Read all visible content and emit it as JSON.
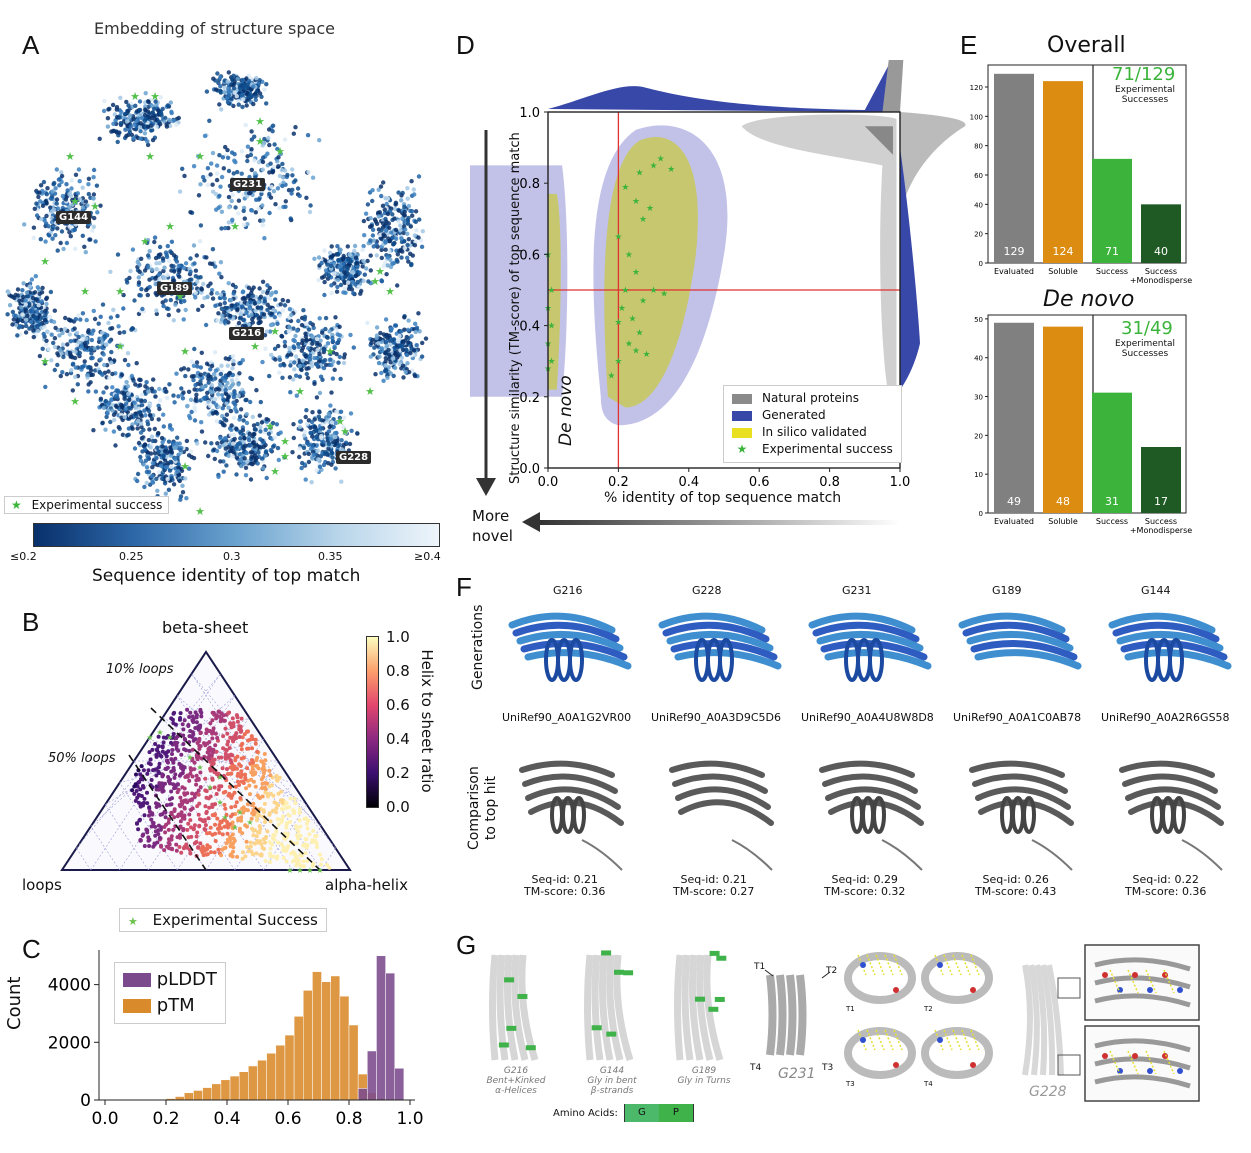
{
  "panel_labels": [
    "A",
    "B",
    "C",
    "D",
    "E",
    "F",
    "G"
  ],
  "panelA": {
    "title": "Embedding of structure space",
    "tags": [
      "G144",
      "G231",
      "G189",
      "G216",
      "G228"
    ],
    "legend": "Experimental success",
    "colorbar_ticks": [
      "≤0.2",
      "0.25",
      "0.3",
      "0.35",
      "≥0.4"
    ],
    "colorbar_label": "Sequence identity of top match"
  },
  "panelB": {
    "corner_top": "beta-sheet",
    "corner_left": "loops",
    "corner_right": "alpha-helix",
    "annot_10": "10% loops",
    "annot_50": "50% loops",
    "colorbar_ticks": [
      "1.0",
      "0.8",
      "0.6",
      "0.4",
      "0.2",
      "0.0"
    ],
    "colorbar_label": "Helix to sheet ratio",
    "legend": "Experimental Success"
  },
  "panelD": {
    "ylabel": "Structure similarity (TM-score) of top sequence match",
    "xlabel": "% identity of top sequence match",
    "xticks": [
      "0.0",
      "0.2",
      "0.4",
      "0.6",
      "0.8",
      "1.0"
    ],
    "yticks": [
      "0.0",
      "0.2",
      "0.4",
      "0.6",
      "0.8",
      "1.0"
    ],
    "annot": "De novo",
    "legend": [
      "Natural proteins",
      "Generated",
      "In silico validated",
      "Experimental success"
    ],
    "arrow_label_1": "More",
    "arrow_label_2": "novel"
  },
  "panelE": {
    "overall_title": "Overall",
    "denovo_title": "De novo",
    "overall_big": "71/129",
    "denovo_big": "31/49",
    "sub1": "Experimental",
    "sub2": "Successes",
    "overall_yticks": [
      "0",
      "20",
      "40",
      "60",
      "80",
      "100",
      "120"
    ],
    "denovo_yticks": [
      "0",
      "10",
      "20",
      "30",
      "40",
      "50"
    ],
    "categories": [
      "Evaluated",
      "Soluble",
      "Success",
      "Success"
    ],
    "cat4_line2": "+Monodisperse",
    "overall_values": [
      "129",
      "124",
      "71",
      "40"
    ],
    "denovo_values": [
      "49",
      "48",
      "31",
      "17"
    ]
  },
  "chart_data": [
    {
      "type": "bar",
      "title": "Overall",
      "categories": [
        "Evaluated",
        "Soluble",
        "Success",
        "Success +Monodisperse"
      ],
      "values": [
        129,
        124,
        71,
        40
      ],
      "ylim": [
        0,
        135
      ],
      "colors": [
        "#808080",
        "#dc8c10",
        "#3cb43c",
        "#1f5a24"
      ]
    },
    {
      "type": "bar",
      "title": "De novo",
      "categories": [
        "Evaluated",
        "Soluble",
        "Success",
        "Success +Monodisperse"
      ],
      "values": [
        49,
        48,
        31,
        17
      ],
      "ylim": [
        0,
        51
      ],
      "colors": [
        "#808080",
        "#dc8c10",
        "#3cb43c",
        "#1f5a24"
      ]
    },
    {
      "type": "bar",
      "xlabel": "",
      "ylabel": "Count",
      "xlim": [
        0.0,
        1.0
      ],
      "ylim": [
        0,
        5200
      ],
      "xticks": [
        "0.0",
        "0.2",
        "0.4",
        "0.6",
        "0.8",
        "1.0"
      ],
      "yticks": [
        "0",
        "2000",
        "4000"
      ],
      "bin_edges": [
        0.2,
        0.23,
        0.26,
        0.29,
        0.32,
        0.35,
        0.38,
        0.41,
        0.44,
        0.47,
        0.5,
        0.53,
        0.56,
        0.59,
        0.62,
        0.65,
        0.68,
        0.71,
        0.74,
        0.77,
        0.8,
        0.83,
        0.86,
        0.89,
        0.92,
        0.95,
        0.98
      ],
      "series": [
        {
          "name": "pLDDT",
          "color": "#7b4a8c",
          "values": [
            0,
            0,
            0,
            0,
            0,
            0,
            0,
            0,
            0,
            0,
            0,
            0,
            0,
            0,
            0,
            0,
            0,
            0,
            0,
            0,
            0,
            400,
            1700,
            5000,
            4400,
            1100
          ]
        },
        {
          "name": "pTM",
          "color": "#d98a2a",
          "values": [
            50,
            120,
            250,
            330,
            430,
            560,
            700,
            830,
            980,
            1180,
            1380,
            1620,
            1900,
            2250,
            2900,
            3800,
            4450,
            4100,
            4300,
            3600,
            2600,
            900,
            250,
            50,
            0,
            0
          ]
        }
      ]
    }
  ],
  "panelF": {
    "ids": [
      "G216",
      "G228",
      "G231",
      "G189",
      "G144"
    ],
    "uniref": [
      "UniRef90_A0A1G2VR00",
      "UniRef90_A0A3D9C5D6",
      "UniRef90_A0A4U8W8D8",
      "UniRef90_A0A1C0AB78",
      "UniRef90_A0A2R6GS58"
    ],
    "seqid": [
      "Seq-id: 0.21",
      "Seq-id: 0.21",
      "Seq-id: 0.29",
      "Seq-id: 0.26",
      "Seq-id: 0.22"
    ],
    "tmscore": [
      "TM-score: 0.36",
      "TM-score: 0.27",
      "TM-score: 0.32",
      "TM-score: 0.43",
      "TM-score: 0.36"
    ],
    "row1": "Generations",
    "row2a": "Comparison",
    "row2b": "to top hit"
  },
  "panelG": {
    "cap1": [
      "G216",
      "Bent+Kinked",
      "α-Helices"
    ],
    "cap2": [
      "G144",
      "Gly in bent",
      "β-strands"
    ],
    "cap3": [
      "G189",
      "Gly in Turns"
    ],
    "g231": "G231",
    "g228": "G228",
    "turns": [
      "T1",
      "T2",
      "T3",
      "T4"
    ],
    "aa_label": "Amino Acids:",
    "aa": [
      "G",
      "P"
    ]
  }
}
